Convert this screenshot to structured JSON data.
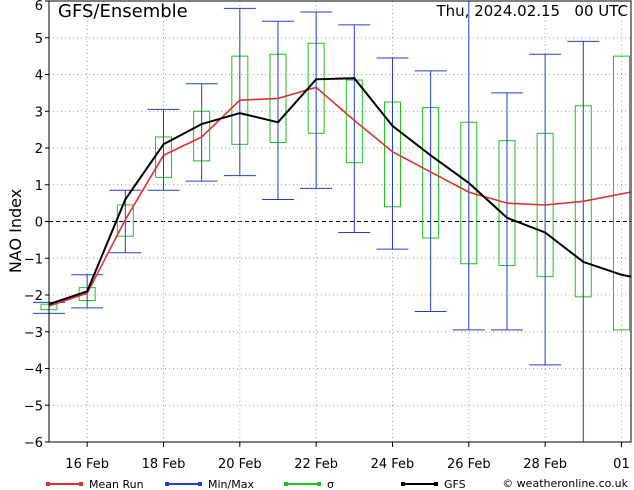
{
  "header": {
    "left_title": "GFS/Ensemble",
    "right_title": "Thu, 2024.02.15   00 UTC"
  },
  "footer": {
    "credit": "© weatheronline.co.uk"
  },
  "colors": {
    "mean": "#e03030",
    "minmax": "#2040d0",
    "sigma": "#20c020",
    "gfs": "#000000",
    "grid": "#a0a0a0"
  },
  "chart_data": {
    "type": "line",
    "ylabel": "NAO Index",
    "xlabel": "",
    "ylim": [
      -6,
      6
    ],
    "xlim": [
      0,
      15.25
    ],
    "yticks": [
      6,
      5,
      4,
      3,
      2,
      1,
      0,
      -1,
      -2,
      -3,
      -4,
      -5,
      -6
    ],
    "xticks": [
      {
        "label": "16 Feb",
        "x": 1
      },
      {
        "label": "18 Feb",
        "x": 3
      },
      {
        "label": "20 Feb",
        "x": 5
      },
      {
        "label": "22 Feb",
        "x": 7
      },
      {
        "label": "24 Feb",
        "x": 9
      },
      {
        "label": "26 Feb",
        "x": 11
      },
      {
        "label": "28 Feb",
        "x": 13
      },
      {
        "label": "01",
        "x": 15
      }
    ],
    "legend": [
      {
        "key": "mean",
        "label": "Mean Run"
      },
      {
        "key": "minmax",
        "label": "Min/Max"
      },
      {
        "key": "sigma",
        "label": "σ"
      },
      {
        "key": "gfs",
        "label": "GFS"
      }
    ],
    "x": [
      0,
      1,
      2,
      3,
      4,
      5,
      6,
      7,
      8,
      9,
      10,
      11,
      12,
      13,
      14,
      15,
      15.25
    ],
    "series": [
      {
        "key": "mean",
        "values": [
          -2.3,
          -1.95,
          0.05,
          1.8,
          2.3,
          3.3,
          3.35,
          3.65,
          2.75,
          1.9,
          1.35,
          0.8,
          0.5,
          0.45,
          0.55,
          0.75,
          0.8
        ]
      },
      {
        "key": "gfs",
        "values": [
          -2.25,
          -1.9,
          0.6,
          2.1,
          2.65,
          2.95,
          2.7,
          3.87,
          3.9,
          2.6,
          1.8,
          1.05,
          0.1,
          -0.3,
          -1.1,
          -1.45,
          -1.5
        ]
      }
    ],
    "minmax": [
      {
        "x": 0,
        "min": -2.5,
        "max": -2.2
      },
      {
        "x": 1,
        "min": -2.35,
        "max": -1.45
      },
      {
        "x": 2,
        "min": -0.85,
        "max": 0.85
      },
      {
        "x": 3,
        "min": 0.85,
        "max": 3.05
      },
      {
        "x": 4,
        "min": 1.1,
        "max": 3.75
      },
      {
        "x": 5,
        "min": 1.25,
        "max": 5.8
      },
      {
        "x": 6,
        "min": 0.6,
        "max": 5.45
      },
      {
        "x": 7,
        "min": 0.9,
        "max": 5.7
      },
      {
        "x": 8,
        "min": -0.3,
        "max": 5.35
      },
      {
        "x": 9,
        "min": -0.75,
        "max": 4.45
      },
      {
        "x": 10,
        "min": -2.45,
        "max": 4.1
      },
      {
        "x": 11,
        "min": -2.95,
        "max": 6.0
      },
      {
        "x": 12,
        "min": -2.95,
        "max": 3.5
      },
      {
        "x": 13,
        "min": -3.9,
        "max": 4.55
      },
      {
        "x": 14,
        "min": -6.0,
        "max": 4.9
      }
    ],
    "sigma": [
      {
        "x": 0,
        "low": -2.4,
        "high": -2.25
      },
      {
        "x": 1,
        "low": -2.15,
        "high": -1.8
      },
      {
        "x": 2,
        "low": -0.4,
        "high": 0.45
      },
      {
        "x": 3,
        "low": 1.2,
        "high": 2.3
      },
      {
        "x": 4,
        "low": 1.65,
        "high": 3.0
      },
      {
        "x": 5,
        "low": 2.1,
        "high": 4.5
      },
      {
        "x": 6,
        "low": 2.15,
        "high": 4.55
      },
      {
        "x": 7,
        "low": 2.4,
        "high": 4.85
      },
      {
        "x": 8,
        "low": 1.6,
        "high": 3.85
      },
      {
        "x": 9,
        "low": 0.4,
        "high": 3.25
      },
      {
        "x": 10,
        "low": -0.45,
        "high": 3.1
      },
      {
        "x": 11,
        "low": -1.15,
        "high": 2.7
      },
      {
        "x": 12,
        "low": -1.2,
        "high": 2.2
      },
      {
        "x": 13,
        "low": -1.5,
        "high": 2.4
      },
      {
        "x": 14,
        "low": -2.05,
        "high": 3.15
      },
      {
        "x": 15,
        "low": -2.95,
        "high": 4.5
      }
    ],
    "grid": true,
    "legend_placement": "bottom"
  }
}
